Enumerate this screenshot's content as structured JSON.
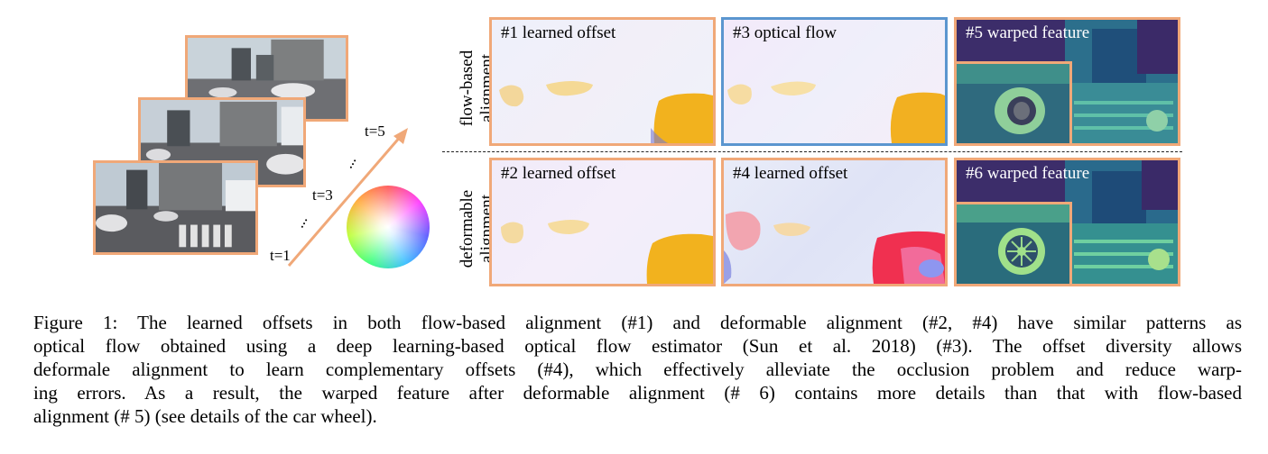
{
  "time_labels": {
    "t1": "t=1",
    "t3": "t=3",
    "t5": "t=5"
  },
  "dots": "...",
  "row_labels": {
    "flow": [
      "flow-based",
      "alignment"
    ],
    "deformable": [
      "deformable",
      "alignment"
    ]
  },
  "panels": [
    {
      "id": "1",
      "title": "#1 learned offset"
    },
    {
      "id": "3",
      "title": "#3 optical flow"
    },
    {
      "id": "5",
      "title": "#5 warped feature"
    },
    {
      "id": "2",
      "title": "#2 learned offset"
    },
    {
      "id": "4",
      "title": "#4 learned offset"
    },
    {
      "id": "6",
      "title": "#6 warped feature"
    }
  ],
  "colors": {
    "frame_border": "#f0a878",
    "optical_flow_border": "#5b96cf",
    "offset_blob": "#f2b21e",
    "feature_bg": "#3c2d6a"
  },
  "caption_lines": [
    "Figure 1: The learned offsets in both flow-based alignment (#1) and deformable alignment (#2, #4) have similar patterns as",
    "optical flow obtained using a deep learning-based optical flow estimator (Sun et al. 2018) (#3). The offset diversity allows",
    "deformale alignment to learn complementary offsets (#4), which effectively alleviate the occlusion problem and reduce warp-",
    "ing errors. As a result, the warped feature after deformable alignment (# 6) contains more details than that with flow-based",
    "alignment (# 5) (see details of the car wheel)."
  ]
}
